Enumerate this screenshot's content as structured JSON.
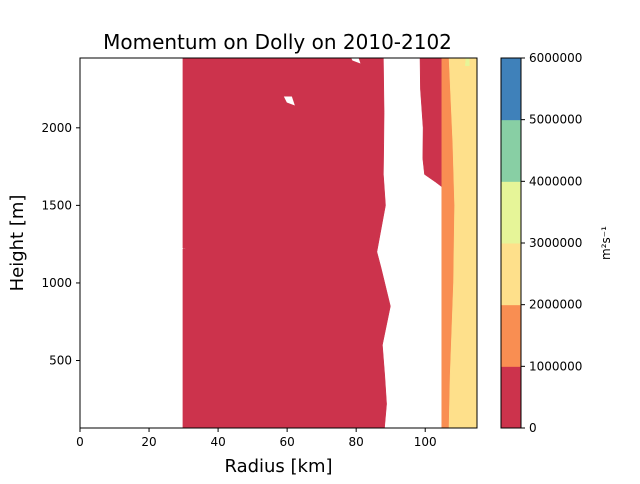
{
  "chart_data": {
    "type": "heatmap",
    "subtype": "filled-contour",
    "title": "Momentum on Dolly on 2010-2102",
    "xlabel": "Radius [km]",
    "ylabel": "Height [m]",
    "xlim": [
      0,
      115
    ],
    "ylim": [
      65,
      2450
    ],
    "x_ticks": [
      "0",
      "20",
      "40",
      "60",
      "80",
      "100"
    ],
    "x_tick_values": [
      0,
      20,
      40,
      60,
      80,
      100
    ],
    "y_ticks": [
      "500",
      "1000",
      "1500",
      "2000"
    ],
    "y_tick_values": [
      500,
      1000,
      1500,
      2000
    ],
    "colorbar": {
      "label": "m²s⁻¹",
      "tick_labels": [
        "0",
        "1000000",
        "2000000",
        "3000000",
        "4000000",
        "5000000",
        "6000000"
      ],
      "levels": [
        0,
        1000000,
        2000000,
        3000000,
        4000000,
        5000000,
        6000000
      ],
      "colors": [
        "#cc334c",
        "#f98e52",
        "#fee08b",
        "#e6f598",
        "#88cfa4",
        "#3f81ba"
      ]
    },
    "contour_bands": [
      {
        "level_range": [
          0,
          1000000
        ],
        "color": "#cc334c",
        "polygons": [
          [
            [
              29.8,
              65
            ],
            [
              29.8,
              1220
            ],
            [
              31.5,
              1215
            ],
            [
              29.8,
              1225
            ],
            [
              29.8,
              2450
            ],
            [
              87.9,
              2450
            ],
            [
              88.1,
              2100
            ],
            [
              88.0,
              1900
            ],
            [
              87.9,
              1700
            ],
            [
              88.5,
              1500
            ],
            [
              86.0,
              1200
            ],
            [
              87.2,
              1100
            ],
            [
              89.9,
              850
            ],
            [
              87.6,
              600
            ],
            [
              88.3,
              400
            ],
            [
              88.8,
              220
            ],
            [
              88.2,
              65
            ]
          ]
        ]
      },
      {
        "level_range": [
          0,
          1000000
        ],
        "color": "#cc334c",
        "polygons": [
          [
            [
              98.5,
              2450
            ],
            [
              98.6,
              2250
            ],
            [
              99.4,
              2000
            ],
            [
              99.3,
              1800
            ],
            [
              99.8,
              1700
            ],
            [
              103.0,
              1650
            ],
            [
              106.0,
              1600
            ],
            [
              107.5,
              1500
            ],
            [
              106.4,
              1400
            ],
            [
              105.8,
              1200
            ],
            [
              105.4,
              1000
            ],
            [
              105.3,
              900
            ],
            [
              105.5,
              700
            ],
            [
              105.0,
              400
            ],
            [
              104.8,
              65
            ],
            [
              104.8,
              2450
            ]
          ]
        ]
      },
      {
        "level_range": [
          1000000,
          2000000
        ],
        "color": "#f98e52",
        "polygons": [
          [
            [
              104.8,
              2450
            ],
            [
              104.8,
              65
            ],
            [
              106.9,
              65
            ],
            [
              107.2,
              400
            ],
            [
              108.2,
              1000
            ],
            [
              108.5,
              1500
            ],
            [
              108.0,
              1900
            ],
            [
              106.9,
              2450
            ]
          ]
        ]
      },
      {
        "level_range": [
          2000000,
          3000000
        ],
        "color": "#fee08b",
        "polygons": [
          [
            [
              106.9,
              2450
            ],
            [
              108.0,
              1900
            ],
            [
              108.5,
              1500
            ],
            [
              108.2,
              1000
            ],
            [
              107.2,
              400
            ],
            [
              106.9,
              65
            ],
            [
              115,
              65
            ],
            [
              115,
              2450
            ]
          ]
        ]
      },
      {
        "level_range": [
          3000000,
          4000000
        ],
        "color": "#e6f598",
        "polygons": [
          [
            [
              111.6,
              2400
            ],
            [
              112.8,
              2400
            ],
            [
              112.7,
              2450
            ],
            [
              111.8,
              2450
            ]
          ]
        ]
      }
    ],
    "white_region_notches": [
      {
        "approx_x": 79.5,
        "approx_y": 2440
      },
      {
        "approx_x": 60.5,
        "approx_y": 2170
      }
    ]
  }
}
